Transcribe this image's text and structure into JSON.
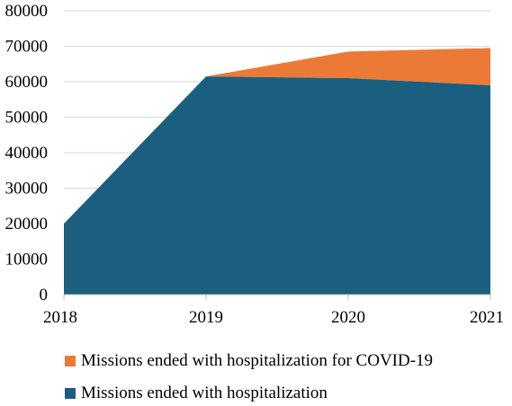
{
  "colors": {
    "hospitalization": "#1b5f80",
    "covid": "#ec7a37",
    "grid": "#d9d9d9",
    "axis": "#bfbfbf"
  },
  "chart_data": {
    "type": "area",
    "stacked": true,
    "x": [
      "2018",
      "2019",
      "2020",
      "2021"
    ],
    "series": [
      {
        "name": "Missions ended with hospitalization",
        "values": [
          20000,
          61500,
          61000,
          59000
        ]
      },
      {
        "name": "Missions ended with hospitalization for COVID-19",
        "values": [
          0,
          0,
          7500,
          10500
        ]
      }
    ],
    "ylim": [
      0,
      80000
    ],
    "yticks": [
      "0",
      "10000",
      "20000",
      "30000",
      "40000",
      "50000",
      "60000",
      "70000",
      "80000"
    ],
    "grid": true,
    "legend_position": "bottom"
  }
}
